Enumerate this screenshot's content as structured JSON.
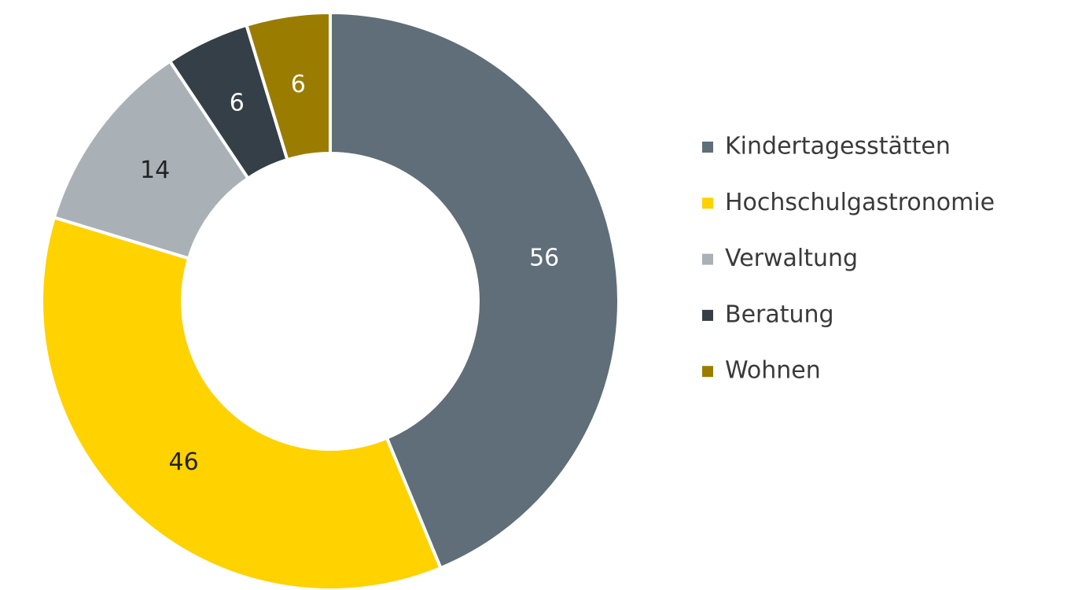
{
  "chart_data": {
    "type": "pie",
    "categories": [
      "Kindertagesstätten",
      "Hochschulgastronomie",
      "Verwaltung",
      "Beratung",
      "Wohnen"
    ],
    "values": [
      56,
      46,
      14,
      6,
      6
    ],
    "colors": [
      "#5f6e78",
      "#ffd200",
      "#a9b1b7",
      "#343f47",
      "#9a7d00"
    ],
    "donut": true,
    "legend": "right"
  }
}
